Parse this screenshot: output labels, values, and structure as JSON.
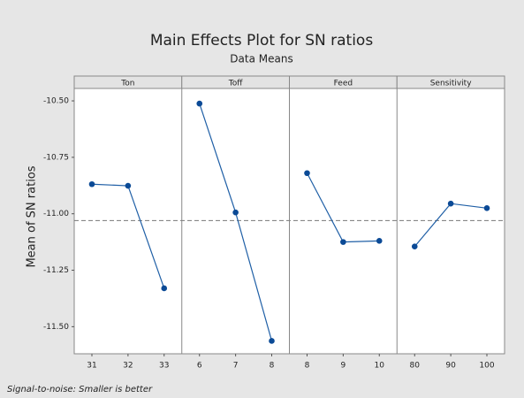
{
  "chart_data": {
    "type": "line",
    "title": "Main Effects Plot for SN ratios",
    "subtitle": "Data Means",
    "ylabel": "Mean of SN ratios",
    "footnote": "Signal-to-noise: Smaller is better",
    "color": "#1f5fa6",
    "ylim": [
      -11.62,
      -10.445
    ],
    "yticks": [
      {
        "value": -10.5,
        "label": "-10.50"
      },
      -10.75,
      {
        "value": -11,
        "label": "-11.00"
      },
      -11.25,
      {
        "value": -11.5,
        "label": "-11.50"
      }
    ],
    "reference_line": -11.03,
    "panels": [
      {
        "title": "Ton",
        "categories": [
          "31",
          "32",
          "33"
        ],
        "values": [
          -10.869,
          -10.876,
          -11.33
        ]
      },
      {
        "title": "Toff",
        "categories": [
          "6",
          "7",
          "8"
        ],
        "values": [
          -10.512,
          -10.994,
          -11.563
        ]
      },
      {
        "title": "Feed",
        "categories": [
          "8",
          "9",
          "10"
        ],
        "values": [
          -10.82,
          -11.125,
          -11.12
        ]
      },
      {
        "title": "Sensitivity",
        "categories": [
          "80",
          "90",
          "100"
        ],
        "values": [
          -11.145,
          -10.955,
          -10.975
        ]
      }
    ]
  }
}
